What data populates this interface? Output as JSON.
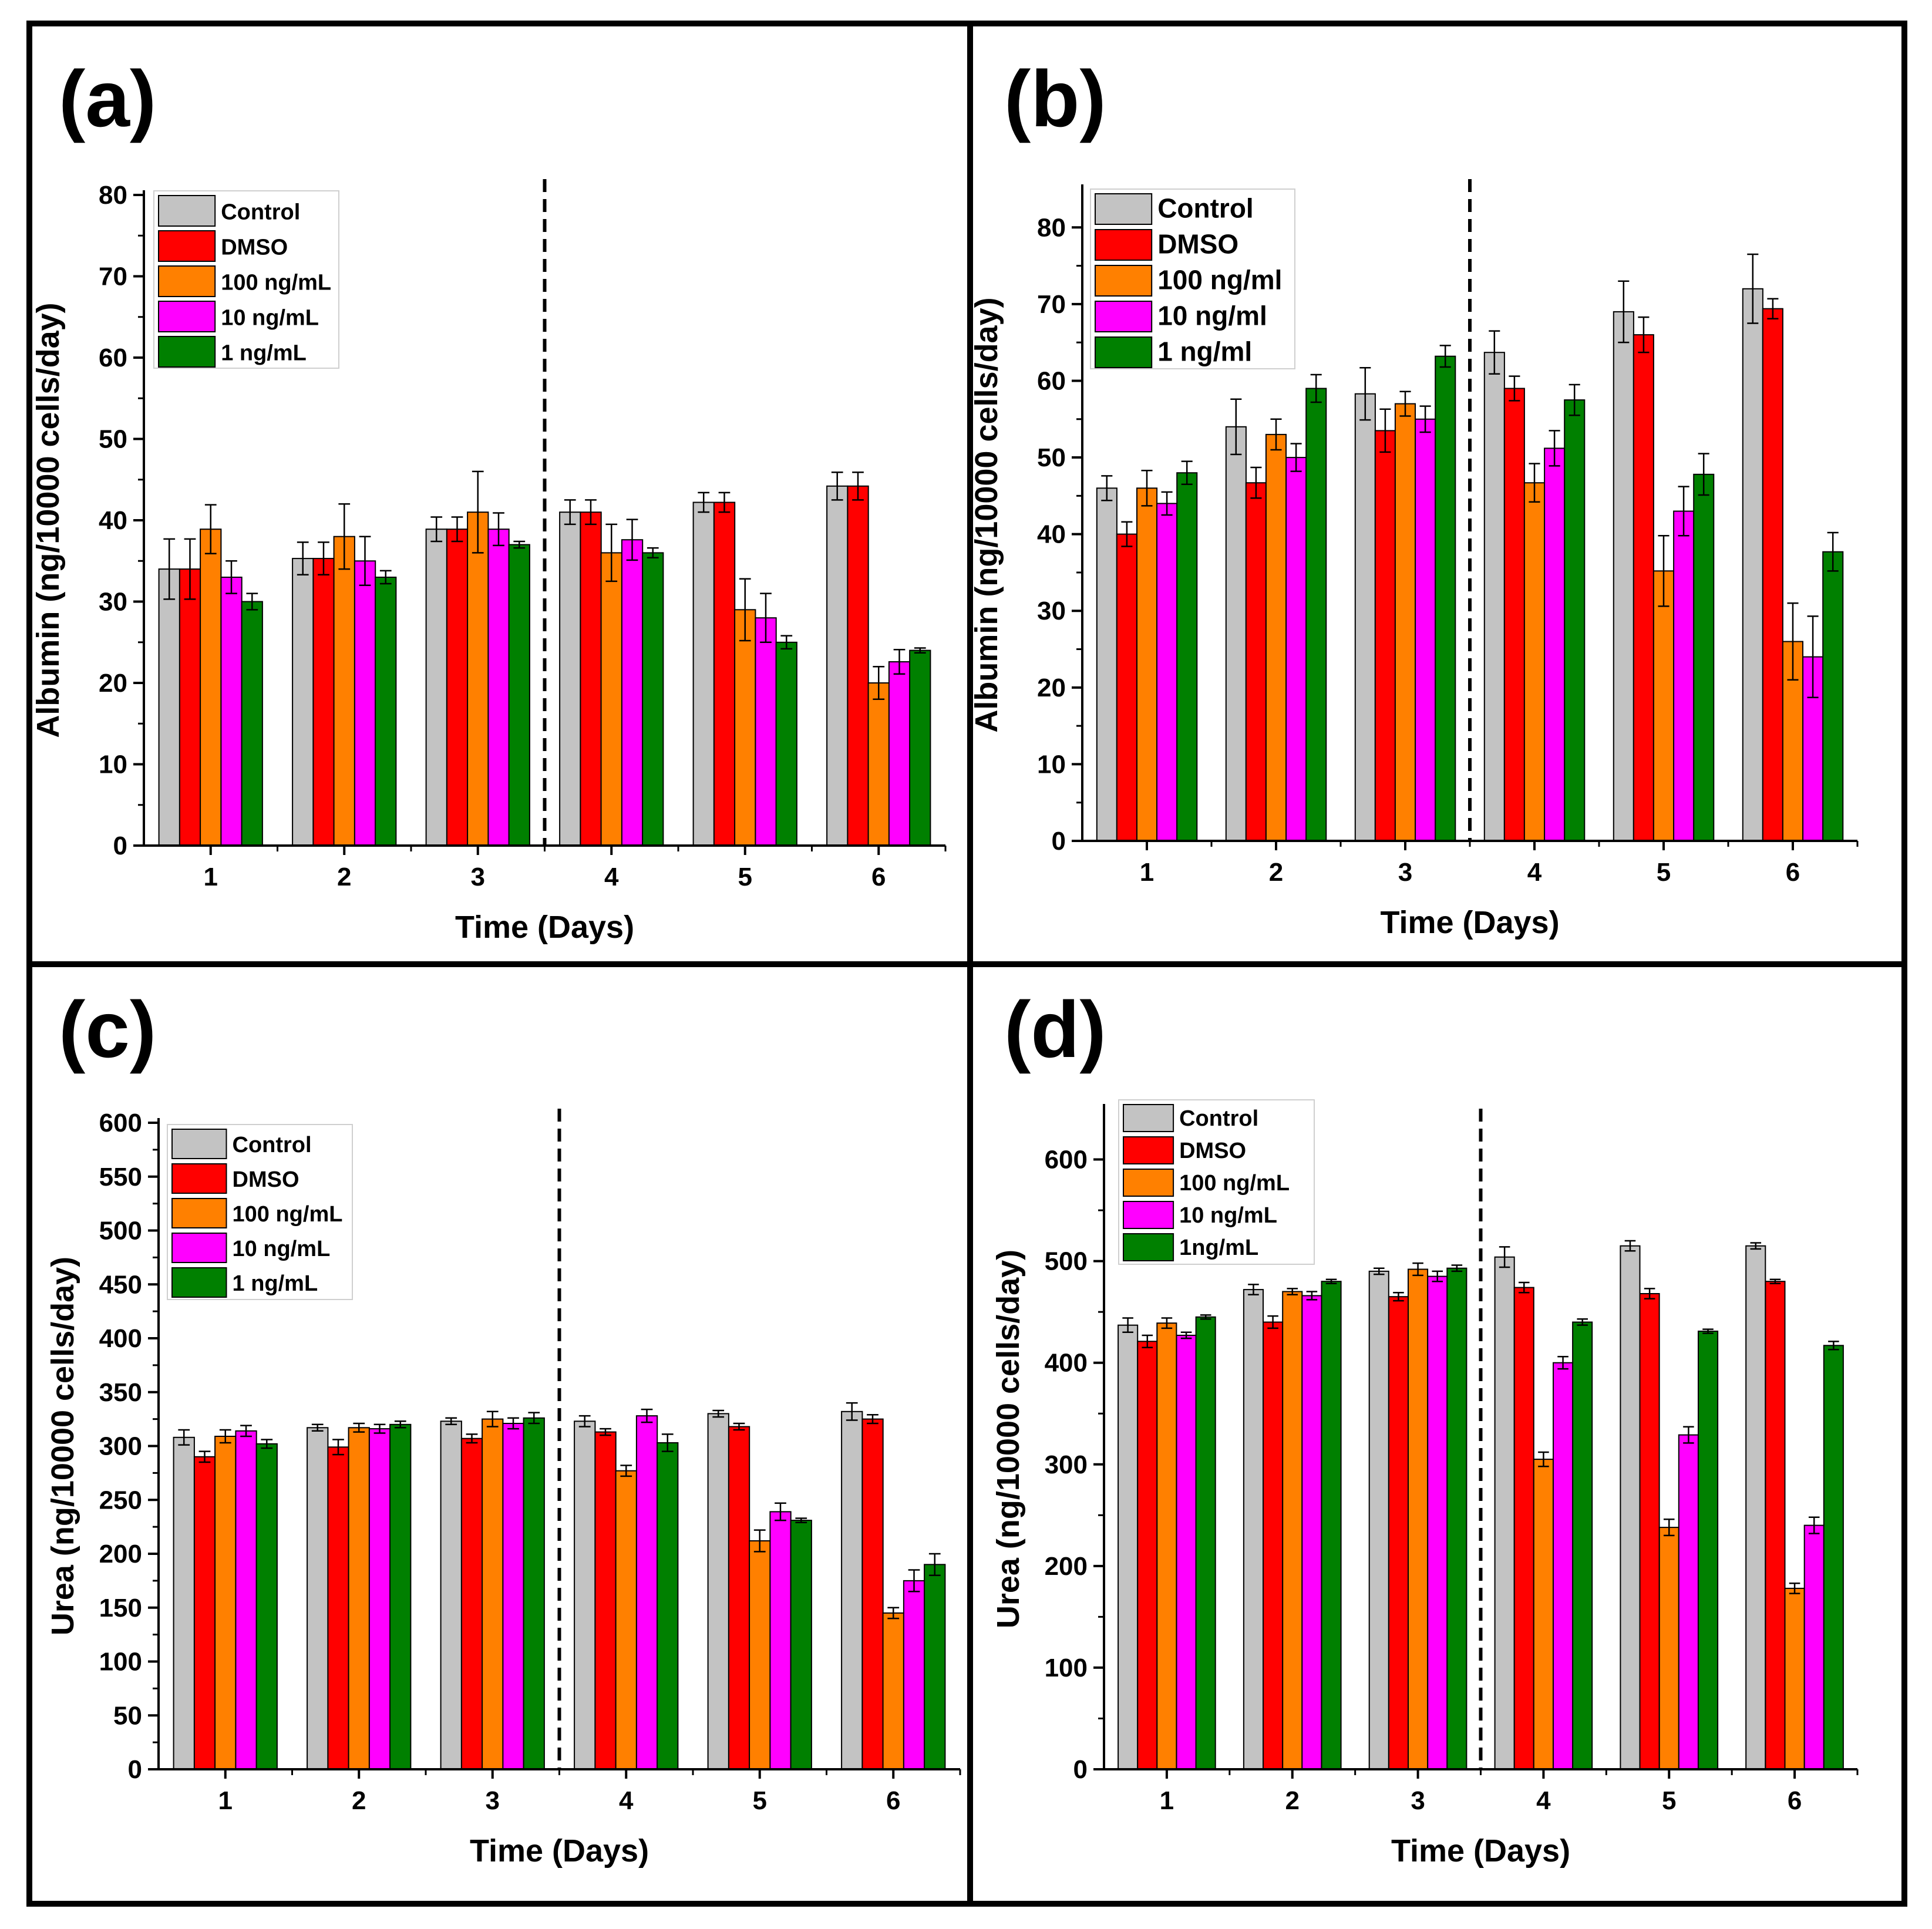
{
  "figure": {
    "panel_labels": [
      "(a)",
      "(b)",
      "(c)",
      "(d)"
    ],
    "colors": {
      "Control": "#c3c3c3",
      "DMSO": "#ff0000",
      "100": "#ff8000",
      "10": "#ff00ff",
      "1": "#008000",
      "frame": "#000000"
    }
  },
  "chart_data": [
    {
      "type": "bar",
      "panel": "(a)",
      "xlabel": "Time (Days)",
      "ylabel": "Albumin (ng/10000 cells/day)",
      "ylim": [
        0,
        80
      ],
      "yticks": [
        0,
        10,
        20,
        30,
        40,
        50,
        60,
        70,
        80
      ],
      "categories": [
        "1",
        "2",
        "3",
        "4",
        "5",
        "6"
      ],
      "divider_after_category": "3",
      "legend_position": "top-left",
      "series": [
        {
          "name": "Control",
          "color_key": "Control",
          "values": [
            34,
            35.3,
            38.9,
            41,
            42.2,
            44.2
          ],
          "errors": [
            3.7,
            2,
            1.5,
            1.5,
            1.2,
            1.7
          ]
        },
        {
          "name": "DMSO",
          "color_key": "DMSO",
          "values": [
            34,
            35.3,
            38.9,
            41,
            42.2,
            44.2
          ],
          "errors": [
            3.7,
            2,
            1.5,
            1.5,
            1.2,
            1.7
          ]
        },
        {
          "name": "100 ng/mL",
          "color_key": "100",
          "values": [
            38.9,
            38,
            41,
            36,
            29,
            20
          ],
          "errors": [
            3,
            4,
            5,
            3.5,
            3.8,
            2
          ]
        },
        {
          "name": "10 ng/mL",
          "color_key": "10",
          "values": [
            33,
            35,
            38.9,
            37.6,
            28,
            22.6
          ],
          "errors": [
            2,
            3,
            2,
            2.5,
            3,
            1.5
          ]
        },
        {
          "name": "1 ng/mL",
          "color_key": "1",
          "values": [
            30,
            33,
            37,
            36,
            25,
            24
          ],
          "errors": [
            1,
            0.8,
            0.4,
            0.6,
            0.8,
            0.3
          ]
        }
      ]
    },
    {
      "type": "bar",
      "panel": "(b)",
      "xlabel": "Time (Days)",
      "ylabel": "Albumin (ng/10000 cells/day)",
      "ylim": [
        0,
        85
      ],
      "yticks": [
        0,
        10,
        20,
        30,
        40,
        50,
        60,
        70,
        80
      ],
      "categories": [
        "1",
        "2",
        "3",
        "4",
        "5",
        "6"
      ],
      "divider_after_category": "3",
      "legend_position": "top-left",
      "series": [
        {
          "name": "Control",
          "color_key": "Control",
          "values": [
            46,
            54,
            58.3,
            63.7,
            69,
            72
          ],
          "errors": [
            1.6,
            3.6,
            3.4,
            2.8,
            4,
            4.5
          ]
        },
        {
          "name": "DMSO",
          "color_key": "DMSO",
          "values": [
            40,
            46.7,
            53.5,
            59,
            66,
            69.4
          ],
          "errors": [
            1.6,
            2,
            2.8,
            1.6,
            2.3,
            1.3
          ]
        },
        {
          "name": "100 ng/ml",
          "color_key": "100",
          "values": [
            46,
            53,
            57,
            46.7,
            35.2,
            26
          ],
          "errors": [
            2.3,
            2,
            1.6,
            2.5,
            4.6,
            5
          ]
        },
        {
          "name": "10 ng/ml",
          "color_key": "10",
          "values": [
            44,
            50,
            55,
            51.2,
            43,
            24
          ],
          "errors": [
            1.5,
            1.8,
            1.7,
            2.3,
            3.2,
            5.3
          ]
        },
        {
          "name": "1 ng/ml",
          "color_key": "1",
          "values": [
            48,
            59,
            63.2,
            57.5,
            47.8,
            37.7
          ],
          "errors": [
            1.5,
            1.8,
            1.4,
            2,
            2.7,
            2.5
          ]
        }
      ]
    },
    {
      "type": "bar",
      "panel": "(c)",
      "xlabel": "Time (Days)",
      "ylabel": "Urea (ng/10000 cells/day)",
      "ylim": [
        0,
        600
      ],
      "yticks": [
        0,
        50,
        100,
        150,
        200,
        250,
        300,
        350,
        400,
        450,
        500,
        550,
        600
      ],
      "categories": [
        "1",
        "2",
        "3",
        "4",
        "5",
        "6"
      ],
      "divider_after_category": "3",
      "legend_position": "top-left",
      "series": [
        {
          "name": "Control",
          "color_key": "Control",
          "values": [
            308,
            317,
            323,
            323,
            330,
            332
          ],
          "errors": [
            7,
            3,
            3,
            5,
            3,
            8
          ]
        },
        {
          "name": "DMSO",
          "color_key": "DMSO",
          "values": [
            290,
            299,
            307,
            313,
            318,
            325
          ],
          "errors": [
            5,
            7,
            4,
            3,
            3,
            4
          ]
        },
        {
          "name": "100 ng/mL",
          "color_key": "100",
          "values": [
            309,
            317,
            325,
            277,
            212,
            145
          ],
          "errors": [
            6,
            4,
            7,
            5,
            10,
            5
          ]
        },
        {
          "name": "10 ng/mL",
          "color_key": "10",
          "values": [
            314,
            316,
            321,
            328,
            239,
            175
          ],
          "errors": [
            5,
            4,
            5,
            6,
            8,
            10
          ]
        },
        {
          "name": "1 ng/mL",
          "color_key": "1",
          "values": [
            302,
            320,
            326,
            303,
            231,
            190
          ],
          "errors": [
            4,
            3,
            5,
            8,
            2,
            10
          ]
        }
      ]
    },
    {
      "type": "bar",
      "panel": "(d)",
      "xlabel": "Time (Days)",
      "ylabel": "Urea (ng/10000 cells/day)",
      "ylim": [
        0,
        650
      ],
      "yticks": [
        0,
        100,
        200,
        300,
        400,
        500,
        600
      ],
      "categories": [
        "1",
        "2",
        "3",
        "4",
        "5",
        "6"
      ],
      "divider_after_category": "3",
      "legend_position": "top-left",
      "series": [
        {
          "name": "Control",
          "color_key": "Control",
          "values": [
            437,
            472,
            490,
            504,
            515,
            515
          ],
          "errors": [
            7,
            5,
            3,
            10,
            5,
            3
          ]
        },
        {
          "name": "DMSO",
          "color_key": "DMSO",
          "values": [
            421,
            440,
            465,
            474,
            468,
            480
          ],
          "errors": [
            6,
            6,
            4,
            5,
            5,
            2
          ]
        },
        {
          "name": "100 ng/mL",
          "color_key": "100",
          "values": [
            439,
            470,
            492,
            305,
            238,
            178
          ],
          "errors": [
            5,
            3,
            6,
            7,
            8,
            5
          ]
        },
        {
          "name": "10 ng/mL",
          "color_key": "10",
          "values": [
            427,
            466,
            485,
            400,
            329,
            240
          ],
          "errors": [
            3,
            4,
            5,
            6,
            8,
            8
          ]
        },
        {
          "name": "1ng/mL",
          "color_key": "1",
          "values": [
            445,
            480,
            493,
            440,
            431,
            417
          ],
          "errors": [
            2,
            2,
            3,
            3,
            2,
            4
          ]
        }
      ]
    }
  ]
}
